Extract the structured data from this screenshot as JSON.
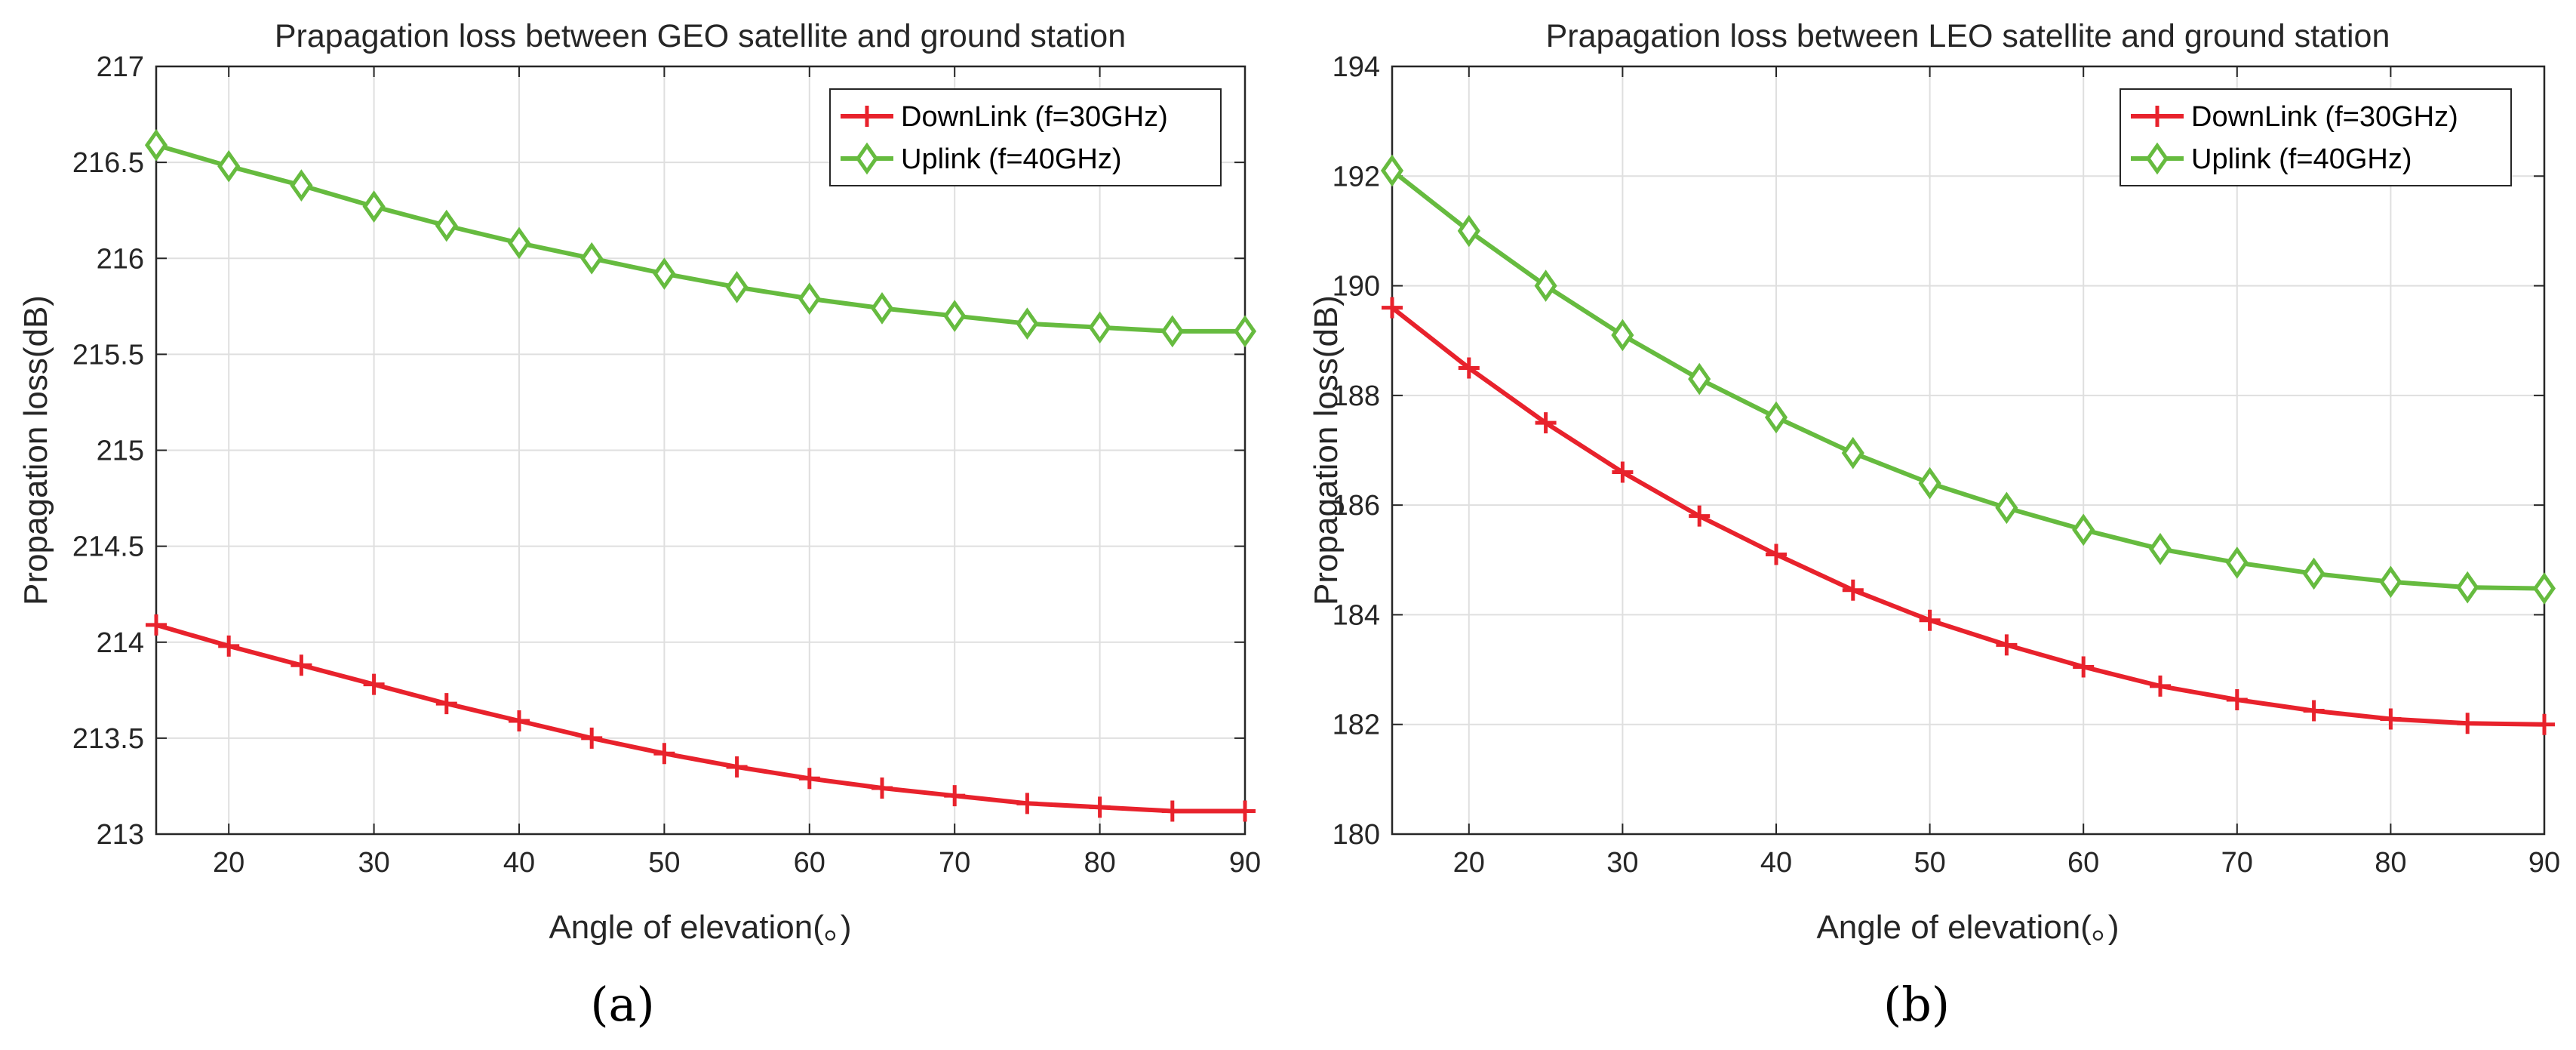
{
  "colors": {
    "downlink": "#e8222c",
    "uplink": "#66bb3f"
  },
  "chart_data": [
    {
      "type": "line",
      "panel_label": "(a)",
      "title": "Prapagation loss between GEO satellite and ground station",
      "xlabel": "Angle of elevation(。)",
      "ylabel": "Propagation loss(dB)",
      "xlim": [
        15,
        90
      ],
      "ylim": [
        213,
        217
      ],
      "xticks": [
        20,
        30,
        40,
        50,
        60,
        70,
        80,
        90
      ],
      "yticks": [
        213,
        213.5,
        214,
        214.5,
        215,
        215.5,
        216,
        216.5,
        217
      ],
      "ytick_labels": [
        "213",
        "213.5",
        "214",
        "214.5",
        "215",
        "215.5",
        "216",
        "216.5",
        "217"
      ],
      "grid": true,
      "legend_position": "top-right",
      "x": [
        15,
        20,
        25,
        30,
        35,
        40,
        45,
        50,
        55,
        60,
        65,
        70,
        75,
        80,
        85,
        90
      ],
      "series": [
        {
          "name": "DownLink (f=30GHz)",
          "marker": "plus",
          "color_key": "downlink",
          "values": [
            214.09,
            213.98,
            213.88,
            213.78,
            213.68,
            213.59,
            213.5,
            213.42,
            213.35,
            213.29,
            213.24,
            213.2,
            213.16,
            213.14,
            213.12,
            213.12
          ]
        },
        {
          "name": "Uplink (f=40GHz)",
          "marker": "diamond",
          "color_key": "uplink",
          "values": [
            216.59,
            216.48,
            216.38,
            216.27,
            216.17,
            216.08,
            216.0,
            215.92,
            215.85,
            215.79,
            215.74,
            215.7,
            215.66,
            215.64,
            215.62,
            215.62
          ]
        }
      ]
    },
    {
      "type": "line",
      "panel_label": "(b)",
      "title": "Prapagation loss between LEO satellite and ground station",
      "xlabel": "Angle of elevation(。)",
      "ylabel": "Propagation loss(dB)",
      "xlim": [
        15,
        90
      ],
      "ylim": [
        180,
        194
      ],
      "xticks": [
        20,
        30,
        40,
        50,
        60,
        70,
        80,
        90
      ],
      "yticks": [
        180,
        182,
        184,
        186,
        188,
        190,
        192,
        194
      ],
      "ytick_labels": [
        "180",
        "182",
        "184",
        "186",
        "188",
        "190",
        "192",
        "194"
      ],
      "grid": true,
      "legend_position": "top-right",
      "x": [
        15,
        20,
        25,
        30,
        35,
        40,
        45,
        50,
        55,
        60,
        65,
        70,
        75,
        80,
        85,
        90
      ],
      "series": [
        {
          "name": "DownLink (f=30GHz)",
          "marker": "plus",
          "color_key": "downlink",
          "values": [
            189.6,
            188.5,
            187.5,
            186.6,
            185.8,
            185.1,
            184.45,
            183.9,
            183.45,
            183.05,
            182.7,
            182.45,
            182.25,
            182.1,
            182.02,
            182.0
          ]
        },
        {
          "name": "Uplink (f=40GHz)",
          "marker": "diamond",
          "color_key": "uplink",
          "values": [
            192.1,
            191.0,
            190.0,
            189.1,
            188.3,
            187.6,
            186.95,
            186.4,
            185.95,
            185.55,
            185.2,
            184.95,
            184.75,
            184.6,
            184.5,
            184.48
          ]
        }
      ]
    }
  ]
}
